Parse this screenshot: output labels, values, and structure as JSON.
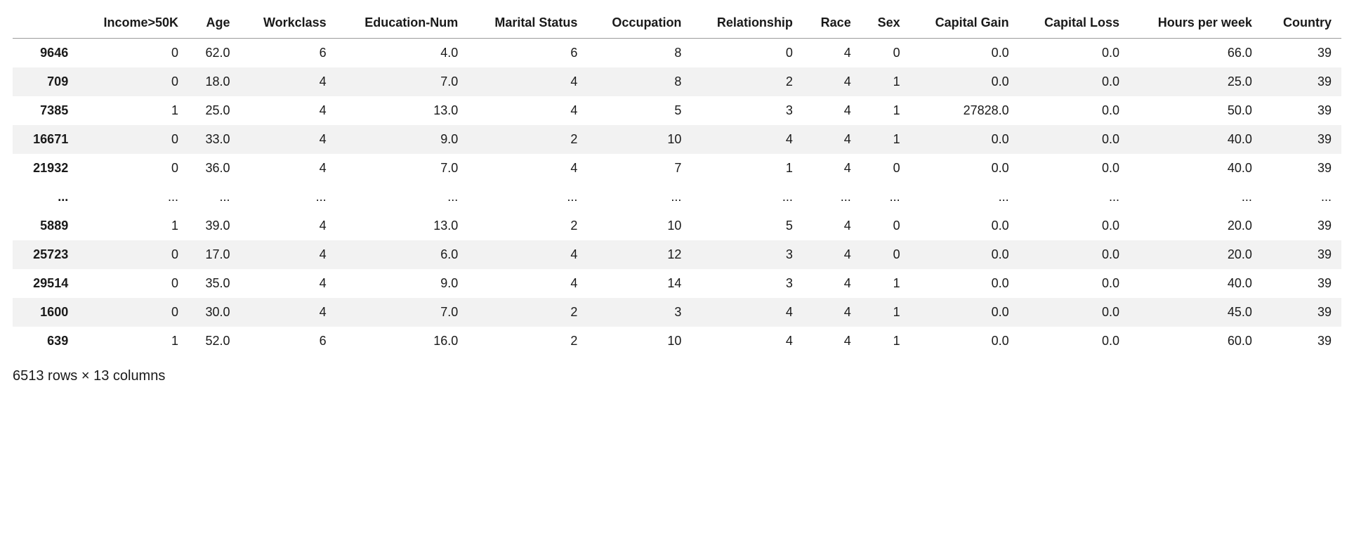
{
  "table": {
    "type": "table",
    "background_color": "#ffffff",
    "stripe_color": "#f2f2f2",
    "header_border_color": "#9a9a9a",
    "text_color": "#1a1a1a",
    "font_family": "-apple-system",
    "header_font_weight": 700,
    "index_font_weight": 700,
    "cell_fontsize_pt": 14,
    "header_align": "right",
    "cell_align": "right",
    "columns": [
      "Income>50K",
      "Age",
      "Workclass",
      "Education-Num",
      "Marital Status",
      "Occupation",
      "Relationship",
      "Race",
      "Sex",
      "Capital Gain",
      "Capital Loss",
      "Hours per week",
      "Country"
    ],
    "index": [
      "9646",
      "709",
      "7385",
      "16671",
      "21932",
      "...",
      "5889",
      "25723",
      "29514",
      "1600",
      "639"
    ],
    "rows": [
      [
        "0",
        "62.0",
        "6",
        "4.0",
        "6",
        "8",
        "0",
        "4",
        "0",
        "0.0",
        "0.0",
        "66.0",
        "39"
      ],
      [
        "0",
        "18.0",
        "4",
        "7.0",
        "4",
        "8",
        "2",
        "4",
        "1",
        "0.0",
        "0.0",
        "25.0",
        "39"
      ],
      [
        "1",
        "25.0",
        "4",
        "13.0",
        "4",
        "5",
        "3",
        "4",
        "1",
        "27828.0",
        "0.0",
        "50.0",
        "39"
      ],
      [
        "0",
        "33.0",
        "4",
        "9.0",
        "2",
        "10",
        "4",
        "4",
        "1",
        "0.0",
        "0.0",
        "40.0",
        "39"
      ],
      [
        "0",
        "36.0",
        "4",
        "7.0",
        "4",
        "7",
        "1",
        "4",
        "0",
        "0.0",
        "0.0",
        "40.0",
        "39"
      ],
      [
        "...",
        "...",
        "...",
        "...",
        "...",
        "...",
        "...",
        "...",
        "...",
        "...",
        "...",
        "...",
        "..."
      ],
      [
        "1",
        "39.0",
        "4",
        "13.0",
        "2",
        "10",
        "5",
        "4",
        "0",
        "0.0",
        "0.0",
        "20.0",
        "39"
      ],
      [
        "0",
        "17.0",
        "4",
        "6.0",
        "4",
        "12",
        "3",
        "4",
        "0",
        "0.0",
        "0.0",
        "20.0",
        "39"
      ],
      [
        "0",
        "35.0",
        "4",
        "9.0",
        "4",
        "14",
        "3",
        "4",
        "1",
        "0.0",
        "0.0",
        "40.0",
        "39"
      ],
      [
        "0",
        "30.0",
        "4",
        "7.0",
        "2",
        "3",
        "4",
        "4",
        "1",
        "0.0",
        "0.0",
        "45.0",
        "39"
      ],
      [
        "1",
        "52.0",
        "6",
        "16.0",
        "2",
        "10",
        "4",
        "4",
        "1",
        "0.0",
        "0.0",
        "60.0",
        "39"
      ]
    ],
    "stripe_pattern": [
      "odd",
      "even",
      "odd",
      "even",
      "odd",
      "odd",
      "odd",
      "even",
      "odd",
      "even",
      "odd"
    ]
  },
  "caption": "6513 rows × 13 columns"
}
